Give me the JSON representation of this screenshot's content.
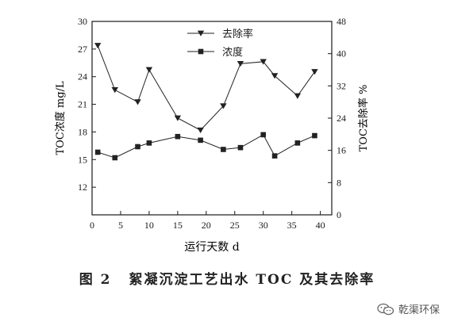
{
  "caption": {
    "figure_no": "图 2",
    "title": "絮凝沉淀工艺出水 TOC 及其去除率"
  },
  "watermark": {
    "text": "乾渠环保",
    "icon": "wechat-icon"
  },
  "chart_data": {
    "type": "line",
    "title": "",
    "xlabel": "运行天数  d",
    "ylabel_left": "TOC浓度  mg/L",
    "ylabel_right": "TOC去除率  %",
    "xlim": [
      0,
      42
    ],
    "ylim_left": [
      9,
      30
    ],
    "ylim_right": [
      0,
      48
    ],
    "xticks": [
      0,
      5,
      10,
      15,
      20,
      25,
      30,
      35,
      40
    ],
    "yticks_left": [
      12,
      15,
      18,
      21,
      24,
      27,
      30
    ],
    "yticks_right": [
      0,
      8,
      16,
      24,
      32,
      40,
      48
    ],
    "grid": false,
    "legend_position": "top-center",
    "series": [
      {
        "name": "去除率",
        "axis": "right",
        "marker": "triangle-down",
        "x": [
          1,
          4,
          8,
          10,
          15,
          19,
          23,
          26,
          30,
          32,
          36,
          39
        ],
        "values": [
          42,
          31,
          28,
          36,
          24,
          21,
          27,
          37.5,
          38,
          34.5,
          29.5,
          35.5
        ]
      },
      {
        "name": "浓度",
        "axis": "left",
        "marker": "square",
        "x": [
          1,
          4,
          8,
          10,
          15,
          19,
          23,
          26,
          30,
          32,
          36,
          39
        ],
        "values": [
          15.8,
          15.2,
          16.4,
          16.8,
          17.5,
          17.1,
          16.1,
          16.3,
          17.7,
          15.4,
          16.8,
          17.6
        ]
      }
    ],
    "colors": {
      "line": "#222222",
      "axis": "#1a1a1a"
    }
  }
}
